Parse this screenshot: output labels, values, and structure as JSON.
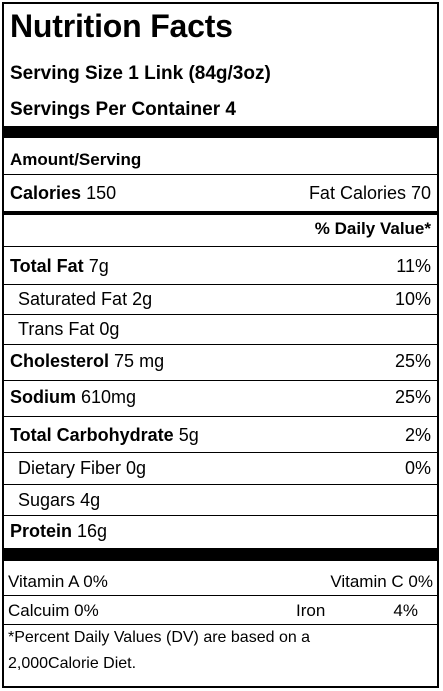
{
  "label": {
    "title": "Nutrition Facts",
    "serving_size": "Serving Size 1 Link (84g/3oz)",
    "servings_per_container": "Servings Per Container 4",
    "amount_serving": "Amount/Serving",
    "calories": {
      "name": "Calories",
      "value": "150"
    },
    "fat_calories": "Fat Calories 70",
    "dv_header": "% Daily Value*",
    "nutrients": {
      "total_fat": {
        "name": "Total Fat",
        "amount": "7g",
        "dv": "11%"
      },
      "saturated_fat": {
        "name": "Saturated Fat",
        "amount": "2g",
        "dv": "10%"
      },
      "trans_fat": {
        "name": "Trans Fat",
        "amount": "0g"
      },
      "cholesterol": {
        "name": "Cholesterol",
        "amount": "75 mg",
        "dv": "25%"
      },
      "sodium": {
        "name": "Sodium",
        "amount": "610mg",
        "dv": "25%"
      },
      "total_carbohydrate": {
        "name": "Total Carbohydrate",
        "amount": "5g",
        "dv": "2%"
      },
      "dietary_fiber": {
        "name": "Dietary Fiber",
        "amount": "0g",
        "dv": "0%"
      },
      "sugars": {
        "name": "Sugars",
        "amount": "4g"
      },
      "protein": {
        "name": "Protein",
        "amount": "16g"
      }
    },
    "vitamins": {
      "vitamin_a": "Vitamin A 0%",
      "vitamin_c": "Vitamin C  0%",
      "calcium": "Calcuim 0%",
      "iron_label": "Iron",
      "iron_value": "4%"
    },
    "footnote_line1": "*Percent Daily Values (DV) are based on a",
    "footnote_line2": "2,000Calorie Diet."
  }
}
